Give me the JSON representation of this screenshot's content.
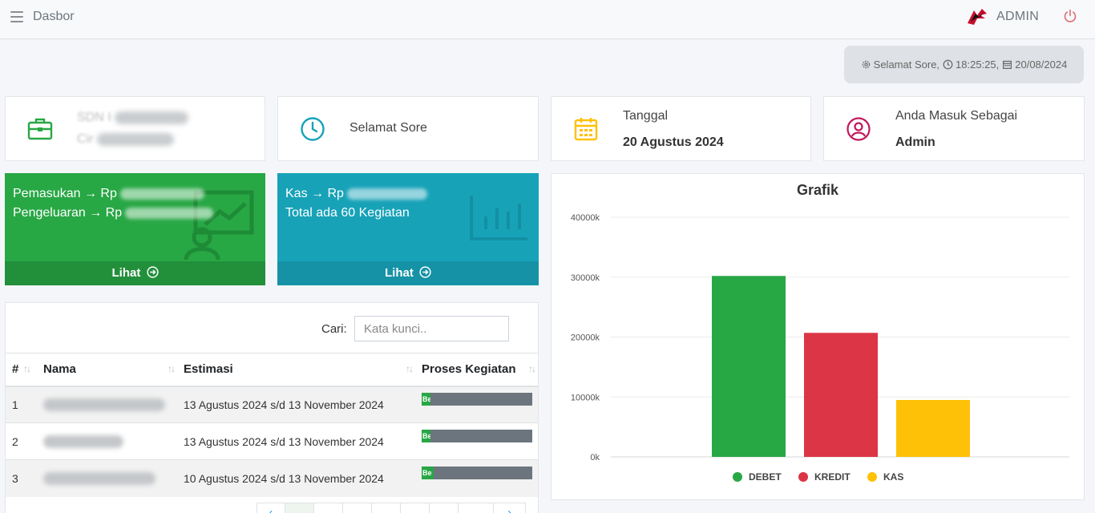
{
  "header": {
    "title": "Dasbor",
    "user": "ADMIN"
  },
  "greeting_bar": {
    "greeting": "Selamat Sore,",
    "time": "18:25:25,",
    "date": "20/08/2024"
  },
  "info_boxes": {
    "profile": {
      "line1": "SDN I",
      "line2": "Cir"
    },
    "greeting": {
      "text": "Selamat Sore"
    },
    "date": {
      "label": "Tanggal",
      "value": "20 Agustus 2024"
    },
    "role": {
      "label": "Anda Masuk Sebagai",
      "value": "Admin"
    }
  },
  "finance_box": {
    "income_label": "Pemasukan → Rp",
    "expense_label": "Pengeluaran → Rp",
    "link_label": "Lihat"
  },
  "cash_box": {
    "cash_label": "Kas → Rp",
    "activity_text": "Total ada 60 Kegiatan",
    "link_label": "Lihat"
  },
  "table": {
    "search_label": "Cari:",
    "search_placeholder": "Kata kunci..",
    "columns": [
      "#",
      "Nama",
      "Estimasi",
      "Proses Kegiatan"
    ],
    "rows": [
      {
        "no": "1",
        "estimasi": "13 Agustus 2024 s/d 13 November 2024",
        "progress_label": "Be",
        "progress": 0.08
      },
      {
        "no": "2",
        "estimasi": "13 Agustus 2024 s/d 13 November 2024",
        "progress_label": "Be",
        "progress": 0.08
      },
      {
        "no": "3",
        "estimasi": "10 Agustus 2024 s/d 13 November 2024",
        "progress_label": "Be",
        "progress": 0.11
      }
    ]
  },
  "colors": {
    "green": "#28a745",
    "green_dark": "#228f3b",
    "teal": "#17a2b8",
    "teal_dark": "#1592a5",
    "red": "#dc3545",
    "yellow": "#ffc107",
    "gray": "#6c757d"
  },
  "chart_data": {
    "type": "bar",
    "title": "Grafik",
    "categories": [
      "DEBET",
      "KREDIT",
      "KAS"
    ],
    "values": [
      30200,
      20700,
      9500
    ],
    "colors": [
      "#28a745",
      "#dc3545",
      "#ffc107"
    ],
    "yticks": [
      "0k",
      "10000k",
      "20000k",
      "30000k",
      "40000k"
    ],
    "ylim": [
      0,
      40000
    ],
    "legend": "bottom",
    "grid": true
  }
}
